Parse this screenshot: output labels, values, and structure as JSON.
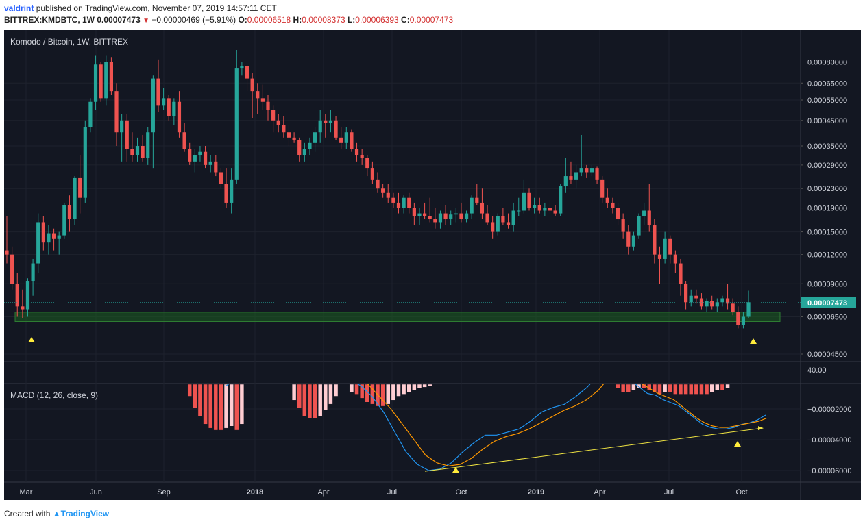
{
  "header": {
    "author": "valdrint",
    "published_text": "published on TradingView.com, November 07, 2019 14:57:11 CET",
    "symbol": "BITTREX:KMDBTC, 1W",
    "last": "0.00007473",
    "change": "−0.00000469 (−5.91%)",
    "o_label": "O:",
    "o_val": "0.00006518",
    "h_label": "H:",
    "h_val": "0.00008373",
    "l_label": "L:",
    "l_val": "0.00006393",
    "c_label": "C:",
    "c_val": "0.00007473"
  },
  "footer": {
    "created_with": "Created with",
    "brand": "TradingView"
  },
  "colors": {
    "background": "#131722",
    "up": "#26a69a",
    "down": "#ef5350",
    "hist_dark": "#ef5350",
    "hist_light": "#ffcdd2",
    "macd_line": "#2196f3",
    "signal_line": "#ff9800",
    "support_zone": "#1b5e20",
    "trendline": "#f0e442",
    "marker": "#ffeb3b"
  },
  "chart_data": [
    {
      "type": "candlestick",
      "title": "Komodo / Bitcoin, 1W, BITTREX",
      "y_scale": "log",
      "y_ticks": [
        "0.00080000",
        "0.00065000",
        "0.00055000",
        "0.00045000",
        "0.00035000",
        "0.00029000",
        "0.00023000",
        "0.00019000",
        "0.00015000",
        "0.00012000",
        "0.00009000",
        "0.00006500",
        "0.00004500"
      ],
      "last_price_label": "0.00007473",
      "x_ticks": [
        "Mar",
        "Jun",
        "Sep",
        "2018",
        "Apr",
        "Jul",
        "Oct",
        "2019",
        "Apr",
        "Jul",
        "Oct"
      ],
      "x_start": "2017-02-20",
      "interval": "1W",
      "ohlc": [
        [
          0.000125,
          0.000175,
          0.00011,
          0.00012
        ],
        [
          0.00012,
          0.00013,
          8.5e-05,
          9e-05
        ],
        [
          9e-05,
          0.0001,
          6.5e-05,
          7.2e-05
        ],
        [
          7.2e-05,
          8.5e-05,
          6.4e-05,
          7e-05
        ],
        [
          7e-05,
          9.5e-05,
          6.5e-05,
          9.2e-05
        ],
        [
          9.2e-05,
          0.000115,
          8e-05,
          0.00011
        ],
        [
          0.00011,
          0.00018,
          0.0001,
          0.000165
        ],
        [
          0.000165,
          0.000175,
          0.000125,
          0.000135
        ],
        [
          0.000135,
          0.00016,
          0.00012,
          0.000148
        ],
        [
          0.000148,
          0.000155,
          0.000125,
          0.00014
        ],
        [
          0.00014,
          0.00015,
          0.00012,
          0.000145
        ],
        [
          0.000145,
          0.0002,
          0.00014,
          0.000195
        ],
        [
          0.000195,
          0.000215,
          0.00015,
          0.00017
        ],
        [
          0.00017,
          0.00026,
          0.00016,
          0.000255
        ],
        [
          0.000255,
          0.00032,
          0.00018,
          0.00021
        ],
        [
          0.00021,
          0.00045,
          0.0002,
          0.00042
        ],
        [
          0.00042,
          0.00056,
          0.0004,
          0.00054
        ],
        [
          0.00054,
          0.00085,
          0.0005,
          0.00078
        ],
        [
          0.00078,
          0.0008,
          0.00054,
          0.00056
        ],
        [
          0.00056,
          0.00085,
          0.00052,
          0.0008
        ],
        [
          0.0008,
          0.00084,
          0.00058,
          0.0006
        ],
        [
          0.0006,
          0.00065,
          0.00035,
          0.0004
        ],
        [
          0.0004,
          0.00048,
          0.0003,
          0.00045
        ],
        [
          0.00045,
          0.00048,
          0.0003,
          0.00034
        ],
        [
          0.00034,
          0.0004,
          0.0003,
          0.00032
        ],
        [
          0.00032,
          0.00038,
          0.0003,
          0.00035
        ],
        [
          0.00035,
          0.00039,
          0.0003,
          0.00031
        ],
        [
          0.00031,
          0.00042,
          0.00029,
          0.0004
        ],
        [
          0.0004,
          0.0007,
          0.00028,
          0.00068
        ],
        [
          0.00068,
          0.00082,
          0.00049,
          0.00052
        ],
        [
          0.00052,
          0.00062,
          0.0005,
          0.00056
        ],
        [
          0.00056,
          0.00058,
          0.00045,
          0.00047
        ],
        [
          0.00047,
          0.00056,
          0.00043,
          0.00054
        ],
        [
          0.00054,
          0.0006,
          0.00038,
          0.0004
        ],
        [
          0.0004,
          0.00044,
          0.00033,
          0.00034
        ],
        [
          0.00034,
          0.00036,
          0.00029,
          0.0003
        ],
        [
          0.0003,
          0.00034,
          0.00027,
          0.00032
        ],
        [
          0.00032,
          0.00035,
          0.0003,
          0.00033
        ],
        [
          0.00033,
          0.00035,
          0.00028,
          0.00029
        ],
        [
          0.00029,
          0.00032,
          0.00027,
          0.0003
        ],
        [
          0.0003,
          0.00032,
          0.00026,
          0.00027
        ],
        [
          0.00027,
          0.00028,
          0.00023,
          0.00024
        ],
        [
          0.00024,
          0.00028,
          0.00019,
          0.0002
        ],
        [
          0.0002,
          0.00028,
          0.00018,
          0.00025
        ],
        [
          0.00025,
          0.0009,
          0.00024,
          0.00075
        ],
        [
          0.00075,
          0.0008,
          0.0007,
          0.00077
        ],
        [
          0.00077,
          0.00078,
          0.0006,
          0.00068
        ],
        [
          0.00068,
          0.00072,
          0.00046,
          0.0006
        ],
        [
          0.0006,
          0.00065,
          0.00048,
          0.00056
        ],
        [
          0.00056,
          0.00064,
          0.0005,
          0.00054
        ],
        [
          0.00054,
          0.00058,
          0.00045,
          0.0005
        ],
        [
          0.0005,
          0.00052,
          0.0004,
          0.00045
        ],
        [
          0.00045,
          0.00048,
          0.0004,
          0.00043
        ],
        [
          0.00043,
          0.00047,
          0.00038,
          0.0004
        ],
        [
          0.0004,
          0.00043,
          0.00035,
          0.00038
        ],
        [
          0.00038,
          0.0004,
          0.00036,
          0.00037
        ],
        [
          0.00037,
          0.00038,
          0.0003,
          0.00032
        ],
        [
          0.00032,
          0.00036,
          0.0003,
          0.00034
        ],
        [
          0.00034,
          0.00038,
          0.00032,
          0.00036
        ],
        [
          0.00036,
          0.00042,
          0.00033,
          0.0004
        ],
        [
          0.0004,
          0.0005,
          0.00036,
          0.00045
        ],
        [
          0.00045,
          0.00048,
          0.00038,
          0.00044
        ],
        [
          0.00044,
          0.0005,
          0.0004,
          0.00045
        ],
        [
          0.00045,
          0.00047,
          0.00037,
          0.00038
        ],
        [
          0.00038,
          0.00042,
          0.00034,
          0.00036
        ],
        [
          0.00036,
          0.00042,
          0.00034,
          0.0004
        ],
        [
          0.0004,
          0.00041,
          0.00033,
          0.00034
        ],
        [
          0.00034,
          0.00036,
          0.0003,
          0.00032
        ],
        [
          0.00032,
          0.00034,
          0.00029,
          0.00031
        ],
        [
          0.00031,
          0.00032,
          0.00026,
          0.00028
        ],
        [
          0.00028,
          0.0003,
          0.00024,
          0.00025
        ],
        [
          0.00025,
          0.00027,
          0.00022,
          0.00023
        ],
        [
          0.00023,
          0.00024,
          0.00021,
          0.00022
        ],
        [
          0.00022,
          0.00024,
          0.0002,
          0.00021
        ],
        [
          0.00021,
          0.00022,
          0.00019,
          0.0002
        ],
        [
          0.0002,
          0.00022,
          0.00018,
          0.00019
        ],
        [
          0.00019,
          0.000215,
          0.00018,
          0.00021
        ],
        [
          0.00021,
          0.00022,
          0.00018,
          0.00019
        ],
        [
          0.00019,
          0.0002,
          0.00016,
          0.000175
        ],
        [
          0.000175,
          0.00019,
          0.00016,
          0.00018
        ],
        [
          0.00018,
          0.0002,
          0.00017,
          0.000175
        ],
        [
          0.000175,
          0.00021,
          0.000165,
          0.00017
        ],
        [
          0.00017,
          0.00019,
          0.000155,
          0.000165
        ],
        [
          0.000165,
          0.000185,
          0.000155,
          0.00018
        ],
        [
          0.00018,
          0.000195,
          0.00016,
          0.00017
        ],
        [
          0.00017,
          0.000185,
          0.00016,
          0.000178
        ],
        [
          0.000178,
          0.00019,
          0.000165,
          0.00018
        ],
        [
          0.00018,
          0.0002,
          0.000165,
          0.00017
        ],
        [
          0.00017,
          0.000185,
          0.000165,
          0.00018
        ],
        [
          0.00018,
          0.000215,
          0.00017,
          0.00021
        ],
        [
          0.00021,
          0.00024,
          0.000195,
          0.0002
        ],
        [
          0.0002,
          0.00023,
          0.00017,
          0.00018
        ],
        [
          0.00018,
          0.000195,
          0.00016,
          0.000165
        ],
        [
          0.000165,
          0.000175,
          0.00014,
          0.00015
        ],
        [
          0.00015,
          0.00018,
          0.000145,
          0.000175
        ],
        [
          0.000175,
          0.00019,
          0.00016,
          0.000165
        ],
        [
          0.000165,
          0.00018,
          0.000155,
          0.00016
        ],
        [
          0.00016,
          0.0002,
          0.00015,
          0.000185
        ],
        [
          0.000185,
          0.00021,
          0.000175,
          0.000185
        ],
        [
          0.000185,
          0.00025,
          0.00018,
          0.00022
        ],
        [
          0.00022,
          0.00023,
          0.000185,
          0.00019
        ],
        [
          0.00019,
          0.00021,
          0.00018,
          0.000195
        ],
        [
          0.000195,
          0.00021,
          0.00018,
          0.000185
        ],
        [
          0.000185,
          0.0002,
          0.000175,
          0.00019
        ],
        [
          0.00019,
          0.000205,
          0.00018,
          0.000185
        ],
        [
          0.000185,
          0.000195,
          0.000175,
          0.00018
        ],
        [
          0.00018,
          0.00024,
          0.000175,
          0.000235
        ],
        [
          0.000235,
          0.00031,
          0.00022,
          0.00026
        ],
        [
          0.00026,
          0.0003,
          0.00024,
          0.00025
        ],
        [
          0.00025,
          0.00029,
          0.00023,
          0.00027
        ],
        [
          0.00027,
          0.00039,
          0.00026,
          0.00028
        ],
        [
          0.00028,
          0.00029,
          0.000255,
          0.00027
        ],
        [
          0.00027,
          0.00029,
          0.00026,
          0.00028
        ],
        [
          0.00028,
          0.000285,
          0.00024,
          0.00025
        ],
        [
          0.00025,
          0.00026,
          0.0002,
          0.00021
        ],
        [
          0.00021,
          0.00023,
          0.00019,
          0.0002
        ],
        [
          0.0002,
          0.00021,
          0.00018,
          0.00019
        ],
        [
          0.00019,
          0.0002,
          0.00016,
          0.00017
        ],
        [
          0.00017,
          0.00018,
          0.00014,
          0.00015
        ],
        [
          0.00015,
          0.00016,
          0.00012,
          0.00013
        ],
        [
          0.00013,
          0.00015,
          0.000125,
          0.000145
        ],
        [
          0.000145,
          0.00018,
          0.00014,
          0.000175
        ],
        [
          0.000175,
          0.0002,
          0.00016,
          0.000185
        ],
        [
          0.000185,
          0.00024,
          0.00015,
          0.00016
        ],
        [
          0.00016,
          0.00017,
          0.00011,
          0.00012
        ],
        [
          0.00012,
          0.00013,
          9e-05,
          0.000115
        ],
        [
          0.000115,
          0.00015,
          0.00011,
          0.00014
        ],
        [
          0.00014,
          0.000145,
          0.00011,
          0.00012
        ],
        [
          0.00012,
          0.000125,
          0.0001,
          0.00011
        ],
        [
          0.00011,
          0.000115,
          8e-05,
          9e-05
        ],
        [
          9e-05,
          9.2e-05,
          7e-05,
          7.5e-05
        ],
        [
          7.5e-05,
          8.5e-05,
          7.2e-05,
          8e-05
        ],
        [
          8e-05,
          8.5e-05,
          7.4e-05,
          7.8e-05
        ],
        [
          7.8e-05,
          8.2e-05,
          7e-05,
          7.2e-05
        ],
        [
          7.2e-05,
          7.8e-05,
          6.8e-05,
          7.6e-05
        ],
        [
          7.6e-05,
          8e-05,
          7e-05,
          7.2e-05
        ],
        [
          7.2e-05,
          7.8e-05,
          6.8e-05,
          7.5e-05
        ],
        [
          7.5e-05,
          8e-05,
          7.2e-05,
          7.8e-05
        ],
        [
          7.8e-05,
          9e-05,
          7e-05,
          7.4e-05
        ],
        [
          7.4e-05,
          7.8e-05,
          6.6e-05,
          6.8e-05
        ],
        [
          6.8e-05,
          7.2e-05,
          5.8e-05,
          6e-05
        ],
        [
          6e-05,
          6.8e-05,
          5.8e-05,
          6.5e-05
        ],
        [
          6.5e-05,
          8.4e-05,
          6.4e-05,
          7.5e-05
        ]
      ],
      "support_zone": [
        6.2e-05,
        6.8e-05
      ],
      "current_price": 7.473e-05,
      "markers_at_index": [
        2,
        139
      ]
    },
    {
      "type": "macd",
      "title": "MACD (12, 26, close, 9)",
      "y_ticks": [
        "40.00",
        "−0.00002000",
        "−0.00004000",
        "−0.00006000"
      ],
      "macd": [
        -3.8e-05,
        -4.5e-05,
        -5.2e-05,
        -5.8e-05,
        -6e-05,
        -5.9e-05,
        -5.6e-05,
        -5.1e-05,
        -4.6e-05,
        -4.1e-05,
        -3.8e-05,
        -3.7e-05,
        -3.5e-05,
        -3.4e-05,
        -3.1e-05,
        -2.9e-05,
        -2.7e-05,
        -2.4e-05,
        -2.1e-05,
        -1.9e-05,
        -1.8e-05,
        -1.6e-05,
        -1.3e-05,
        -1e-05
      ],
      "signal": [
        -3e-05,
        -4e-05,
        -4.8e-05,
        -5.3e-05,
        -5.6e-05,
        -5.7e-05,
        -5.5e-05,
        -5.2e-05,
        -4.8e-05,
        -4.4e-05,
        -4e-05,
        -3.8e-05,
        -3.6e-05,
        -3.4e-05,
        -3.2e-05,
        -3e-05,
        -2.8e-05,
        -2.5e-05,
        -2.2e-05,
        -2e-05,
        -1.8e-05,
        -1.6e-05,
        -1.3e-05,
        -1e-05
      ],
      "macd_start_index": 78,
      "divergence_line": [
        [
          -6e-05,
          78
        ],
        [
          -3e-05,
          143
        ]
      ]
    }
  ]
}
